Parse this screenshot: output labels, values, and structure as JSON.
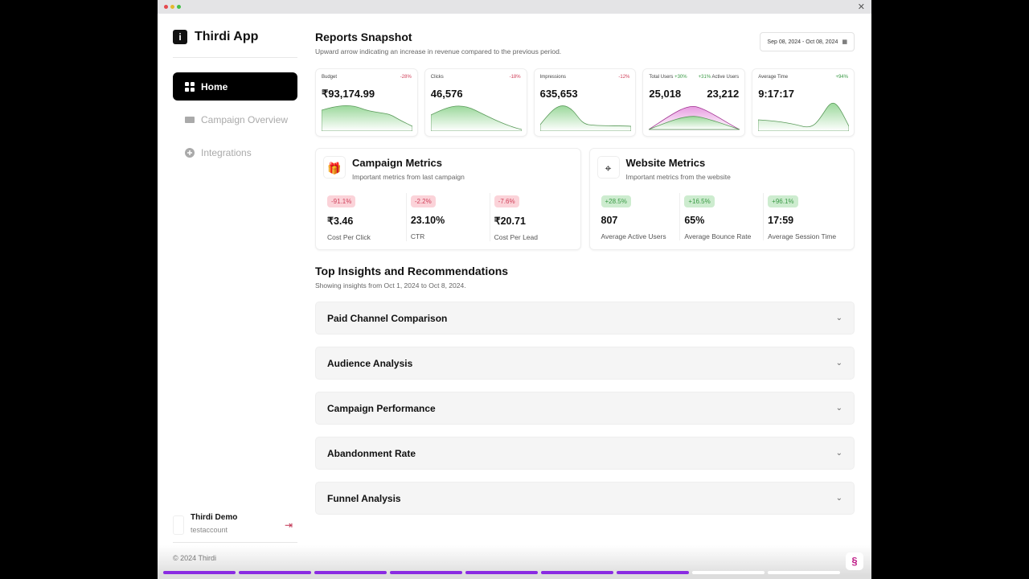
{
  "window": {
    "close_icon": "close-icon"
  },
  "sidebar": {
    "app_name": "Thirdi App",
    "logo_letter": "i",
    "items": [
      {
        "label": "Home",
        "icon": "grid-icon",
        "active": true
      },
      {
        "label": "Campaign Overview",
        "icon": "ticket-icon"
      },
      {
        "label": "Integrations",
        "icon": "plus-circle-icon"
      }
    ],
    "user": {
      "name": "Thirdi Demo",
      "account": "testaccount"
    }
  },
  "footer": {
    "copyright": "© 2024 Thirdi",
    "progress_segments_total": 9,
    "progress_segments_done": 7
  },
  "colors": {
    "accent": "#8a2be2",
    "negative": "#d0405a",
    "positive": "#3a9a45"
  },
  "header": {
    "title": "Reports Snapshot",
    "subtitle": "Upward arrow indicating an increase in revenue compared to the previous period.",
    "date_range": "Sep 08, 2024 - Oct 08, 2024"
  },
  "kpis": [
    {
      "label": "Budget",
      "change": "-28%",
      "value": "₹93,174.99"
    },
    {
      "label": "Clicks",
      "change": "-18%",
      "value": "46,576"
    },
    {
      "label": "Impressions",
      "change": "-12%",
      "value": "635,653"
    },
    {
      "label": "Total Users",
      "change": "+30%",
      "value": "25,018",
      "label2": "Active Users",
      "change2": "+31%",
      "value2": "23,212"
    },
    {
      "label": "Average Time",
      "change": "+94%",
      "value": "9:17:17"
    }
  ],
  "campaign": {
    "title": "Campaign Metrics",
    "subtitle": "Important metrics from last campaign",
    "metrics": [
      {
        "change": "-91.1%",
        "value": "₹3.46",
        "label": "Cost Per Click"
      },
      {
        "change": "-2.2%",
        "value": "23.10%",
        "label": "CTR"
      },
      {
        "change": "-7.6%",
        "value": "₹20.71",
        "label": "Cost Per Lead"
      }
    ]
  },
  "website": {
    "title": "Website Metrics",
    "subtitle": "Important metrics from the website",
    "metrics": [
      {
        "change": "+28.5%",
        "value": "807",
        "label": "Average Active Users"
      },
      {
        "change": "+16.5%",
        "value": "65%",
        "label": "Average Bounce Rate"
      },
      {
        "change": "+96.1%",
        "value": "17:59",
        "label": "Average Session Time"
      }
    ]
  },
  "insights": {
    "title": "Top Insights and Recommendations",
    "subtitle": "Showing insights from Oct 1, 2024 to Oct 8, 2024.",
    "sections": [
      "Paid Channel Comparison",
      "Audience Analysis",
      "Campaign Performance",
      "Abandonment Rate",
      "Funnel Analysis"
    ]
  }
}
